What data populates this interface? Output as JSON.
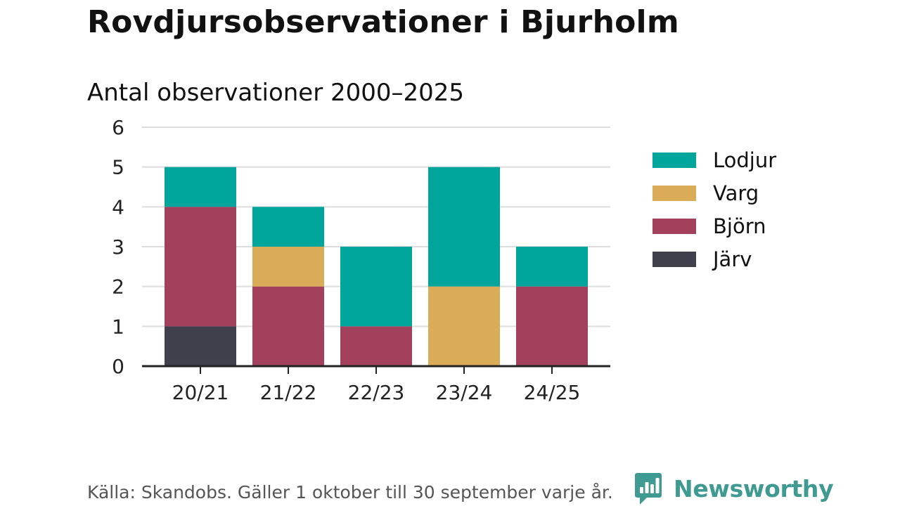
{
  "header": {
    "title": "Rovdjursobservationer i Bjurholm",
    "subtitle": "Antal observationer 2000–2025"
  },
  "chart_data": {
    "type": "bar",
    "stacked": true,
    "categories": [
      "20/21",
      "21/22",
      "22/23",
      "23/24",
      "24/25"
    ],
    "series": [
      {
        "name": "Järv",
        "color": "#403f4c",
        "values": [
          1,
          0,
          0,
          0,
          0
        ]
      },
      {
        "name": "Björn",
        "color": "#a3405b",
        "values": [
          3,
          2,
          1,
          0,
          2
        ]
      },
      {
        "name": "Varg",
        "color": "#daac58",
        "values": [
          0,
          1,
          0,
          2,
          0
        ]
      },
      {
        "name": "Lodjur",
        "color": "#00a59b",
        "values": [
          1,
          1,
          2,
          3,
          1
        ]
      }
    ],
    "legend_order": [
      "Lodjur",
      "Varg",
      "Björn",
      "Järv"
    ],
    "legend_position": "right",
    "ylim": [
      0,
      6
    ],
    "yticks": [
      0,
      1,
      2,
      3,
      4,
      5,
      6
    ],
    "grid": true
  },
  "footer": {
    "source": "Källa: Skandobs. Gäller 1 oktober till 30 september varje år.",
    "brand": "Newsworthy"
  },
  "colors": {
    "brand": "#3f9a91",
    "grid": "#dddddd",
    "axis": "#222222"
  }
}
